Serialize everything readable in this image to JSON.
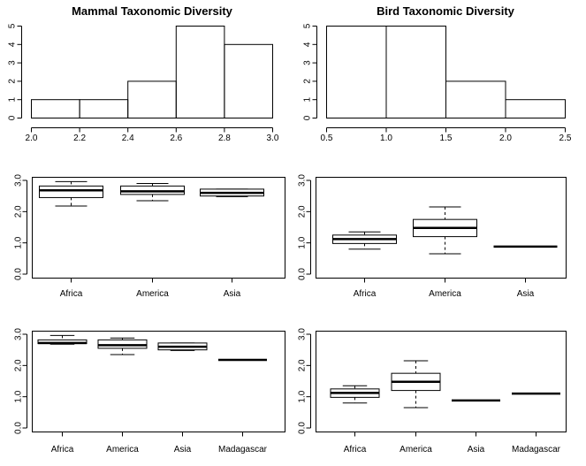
{
  "chart_data": [
    {
      "id": "p1",
      "type": "histogram",
      "title": "Mammal Taxonomic Diversity",
      "bins": [
        [
          2.0,
          2.2
        ],
        [
          2.2,
          2.4
        ],
        [
          2.4,
          2.6
        ],
        [
          2.6,
          2.8
        ],
        [
          2.8,
          3.0
        ]
      ],
      "counts": [
        1,
        1,
        2,
        5,
        4
      ],
      "xlim": [
        2.0,
        3.0
      ],
      "ylim": [
        0,
        5
      ],
      "xticks": [
        2.0,
        2.2,
        2.4,
        2.6,
        2.8,
        3.0
      ],
      "xtick_labels": [
        "2.0",
        "2.2",
        "2.4",
        "2.6",
        "2.8",
        "3.0"
      ],
      "yticks": [
        0,
        1,
        2,
        3,
        4,
        5
      ],
      "ytick_labels": [
        "0",
        "1",
        "2",
        "3",
        "4",
        "5"
      ]
    },
    {
      "id": "p2",
      "type": "histogram",
      "title": "Bird Taxonomic Diversity",
      "bins": [
        [
          0.5,
          1.0
        ],
        [
          1.0,
          1.5
        ],
        [
          1.5,
          2.0
        ],
        [
          2.0,
          2.5
        ]
      ],
      "counts": [
        5,
        5,
        2,
        1
      ],
      "xlim": [
        0.5,
        2.5
      ],
      "ylim": [
        0,
        5
      ],
      "xticks": [
        0.5,
        1.0,
        1.5,
        2.0,
        2.5
      ],
      "xtick_labels": [
        "0.5",
        "1.0",
        "1.5",
        "2.0",
        "2.5"
      ],
      "yticks": [
        0,
        1,
        2,
        3,
        4,
        5
      ],
      "ytick_labels": [
        "0",
        "1",
        "2",
        "3",
        "4",
        "5"
      ]
    },
    {
      "id": "p3",
      "type": "boxplot",
      "title": "",
      "categories": [
        "Africa",
        "America",
        "Asia"
      ],
      "boxes": [
        {
          "min": 2.18,
          "q1": 2.45,
          "median": 2.68,
          "q3": 2.82,
          "max": 2.96
        },
        {
          "min": 2.35,
          "q1": 2.55,
          "median": 2.65,
          "q3": 2.82,
          "max": 2.9
        },
        {
          "min": 2.48,
          "q1": 2.5,
          "median": 2.6,
          "q3": 2.72,
          "max": 2.72
        }
      ],
      "ylim": [
        0.0,
        3.0
      ],
      "yticks": [
        0.0,
        1.0,
        2.0,
        3.0
      ],
      "ytick_labels": [
        "0.0",
        "1.0",
        "2.0",
        "3.0"
      ]
    },
    {
      "id": "p4",
      "type": "boxplot",
      "title": "",
      "categories": [
        "Africa",
        "America",
        "Asia"
      ],
      "boxes": [
        {
          "min": 0.8,
          "q1": 0.98,
          "median": 1.12,
          "q3": 1.25,
          "max": 1.35
        },
        {
          "min": 0.65,
          "q1": 1.2,
          "median": 1.48,
          "q3": 1.75,
          "max": 2.15
        },
        {
          "min": 0.88,
          "q1": 0.88,
          "median": 0.88,
          "q3": 0.88,
          "max": 0.88
        }
      ],
      "ylim": [
        0.0,
        3.0
      ],
      "yticks": [
        0.0,
        1.0,
        2.0,
        3.0
      ],
      "ytick_labels": [
        "0.0",
        "1.0",
        "2.0",
        "3.0"
      ]
    },
    {
      "id": "p5",
      "type": "boxplot",
      "title": "",
      "categories": [
        "Africa",
        "America",
        "Asia",
        "Madagascar"
      ],
      "boxes": [
        {
          "min": 2.68,
          "q1": 2.7,
          "median": 2.72,
          "q3": 2.82,
          "max": 2.96
        },
        {
          "min": 2.35,
          "q1": 2.55,
          "median": 2.65,
          "q3": 2.82,
          "max": 2.88
        },
        {
          "min": 2.48,
          "q1": 2.5,
          "median": 2.6,
          "q3": 2.72,
          "max": 2.72
        },
        {
          "min": 2.18,
          "q1": 2.18,
          "median": 2.18,
          "q3": 2.18,
          "max": 2.18
        }
      ],
      "ylim": [
        0.0,
        3.0
      ],
      "yticks": [
        0.0,
        1.0,
        2.0,
        3.0
      ],
      "ytick_labels": [
        "0.0",
        "1.0",
        "2.0",
        "3.0"
      ]
    },
    {
      "id": "p6",
      "type": "boxplot",
      "title": "",
      "categories": [
        "Africa",
        "America",
        "Asia",
        "Madagascar"
      ],
      "boxes": [
        {
          "min": 0.8,
          "q1": 0.98,
          "median": 1.12,
          "q3": 1.25,
          "max": 1.35
        },
        {
          "min": 0.65,
          "q1": 1.2,
          "median": 1.48,
          "q3": 1.75,
          "max": 2.15
        },
        {
          "min": 0.88,
          "q1": 0.88,
          "median": 0.88,
          "q3": 0.88,
          "max": 0.88
        },
        {
          "min": 1.1,
          "q1": 1.1,
          "median": 1.1,
          "q3": 1.1,
          "max": 1.1
        }
      ],
      "ylim": [
        0.0,
        3.0
      ],
      "yticks": [
        0.0,
        1.0,
        2.0,
        3.0
      ],
      "ytick_labels": [
        "0.0",
        "1.0",
        "2.0",
        "3.0"
      ]
    }
  ]
}
